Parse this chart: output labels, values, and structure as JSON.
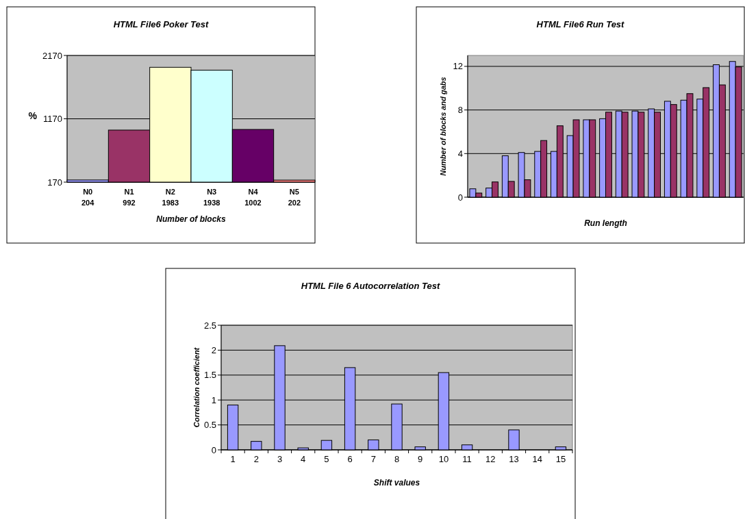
{
  "chart_data": [
    {
      "type": "bar",
      "title": "HTML File6 Poker Test",
      "xlabel": "Number of blocks",
      "ylabel": "%",
      "categories": [
        "N0",
        "N1",
        "N2",
        "N3",
        "N4",
        "N5"
      ],
      "values": [
        204,
        992,
        1983,
        1938,
        1002,
        202
      ],
      "colors": [
        "#9999ff",
        "#993366",
        "#ffffcc",
        "#ccffff",
        "#660066",
        "#ff8080"
      ],
      "data_labels": true,
      "ylim": [
        170,
        2170
      ],
      "yticks": [
        170,
        1170,
        2170
      ],
      "grid": "y"
    },
    {
      "type": "bar",
      "title": "HTML File6 Run Test",
      "xlabel": "Run length",
      "ylabel": "Number of blocks and gabs",
      "categories": [
        null,
        null,
        null,
        null,
        null,
        null,
        null,
        null,
        null,
        null,
        null,
        null,
        null,
        null,
        null,
        null,
        null
      ],
      "series": [
        {
          "color": "#9999ff",
          "values": [
            0.77,
            0.84,
            3.8,
            4.1,
            4.2,
            4.2,
            5.65,
            7.1,
            7.2,
            7.9,
            7.9,
            8.1,
            8.8,
            8.9,
            9.0,
            12.15,
            12.45
          ]
        },
        {
          "color": "#993366",
          "values": [
            0.38,
            1.4,
            1.45,
            1.6,
            5.2,
            6.55,
            7.1,
            7.1,
            7.8,
            7.8,
            7.8,
            7.8,
            8.5,
            9.5,
            10.05,
            10.3,
            11.95
          ]
        }
      ],
      "ylim": [
        0,
        13
      ],
      "yticks": [
        0,
        4,
        8,
        12
      ],
      "grid": "y"
    },
    {
      "type": "bar",
      "title": "HTML File 6 Autocorrelation Test",
      "xlabel": "Shift values",
      "ylabel": "Correlation coefficient",
      "categories": [
        "1",
        "2",
        "3",
        "4",
        "5",
        "6",
        "7",
        "8",
        "9",
        "10",
        "11",
        "12",
        "13",
        "14",
        "15"
      ],
      "values": [
        0.9,
        0.17,
        2.09,
        0.04,
        0.19,
        1.65,
        0.2,
        0.92,
        0.06,
        1.55,
        0.1,
        0,
        0.4,
        0,
        0.06
      ],
      "color": "#9999ff",
      "ylim": [
        0,
        2.5
      ],
      "yticks": [
        0,
        0.5,
        1,
        1.5,
        2,
        2.5
      ],
      "grid": "y"
    }
  ]
}
